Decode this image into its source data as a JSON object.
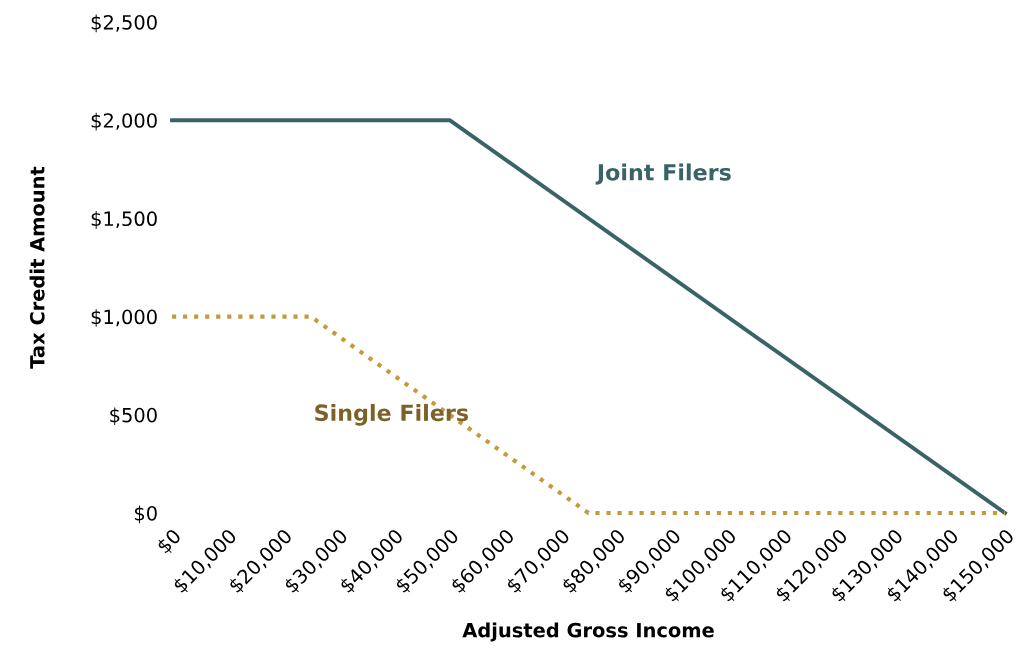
{
  "chart_data": {
    "type": "line",
    "xlabel": "Adjusted Gross Income",
    "ylabel": "Tax Credit Amount",
    "xlim": [
      0,
      150000
    ],
    "xticks": [
      {
        "value": 0,
        "label": "$0"
      },
      {
        "value": 10000,
        "label": "$10,000"
      },
      {
        "value": 20000,
        "label": "$20,000"
      },
      {
        "value": 30000,
        "label": "$30,000"
      },
      {
        "value": 40000,
        "label": "$40,000"
      },
      {
        "value": 50000,
        "label": "$50,000"
      },
      {
        "value": 60000,
        "label": "$60,000"
      },
      {
        "value": 70000,
        "label": "$70,000"
      },
      {
        "value": 80000,
        "label": "$80,000"
      },
      {
        "value": 90000,
        "label": "$90,000"
      },
      {
        "value": 100000,
        "label": "$100,000"
      },
      {
        "value": 110000,
        "label": "$110,000"
      },
      {
        "value": 120000,
        "label": "$120,000"
      },
      {
        "value": 130000,
        "label": "$130,000"
      },
      {
        "value": 140000,
        "label": "$140,000"
      },
      {
        "value": 150000,
        "label": "$150,000"
      }
    ],
    "ylim": [
      0,
      2500
    ],
    "yticks": [
      {
        "value": 0,
        "label": "$0"
      },
      {
        "value": 500,
        "label": "$500"
      },
      {
        "value": 1000,
        "label": "$1,000"
      },
      {
        "value": 1500,
        "label": "$1,500"
      },
      {
        "value": 2000,
        "label": "$2,000"
      },
      {
        "value": 2500,
        "label": "$2,500"
      }
    ],
    "grid": false,
    "legend": false,
    "series": [
      {
        "name": "Joint Filers",
        "color": "#3a6367",
        "line_style": "solid",
        "x": [
          0,
          50000,
          150000
        ],
        "values": [
          2000,
          2000,
          0
        ]
      },
      {
        "name": "Single Filers",
        "color": "#c49a3c",
        "line_style": "dotted",
        "x": [
          0,
          25000,
          75000,
          150000
        ],
        "values": [
          1000,
          1000,
          0,
          0
        ]
      }
    ]
  }
}
